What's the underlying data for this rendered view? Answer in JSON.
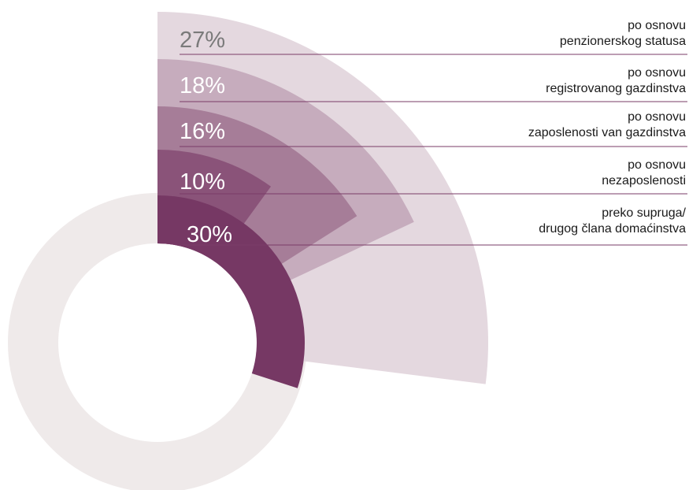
{
  "chart_data": {
    "type": "pie",
    "categories": [
      {
        "label_lines": [
          "po osnovu",
          "penzionerskog statusa"
        ],
        "value": 27,
        "value_label": "27%",
        "color": "#e4d8df"
      },
      {
        "label_lines": [
          "po osnovu",
          "registrovanog gazdinstva"
        ],
        "value": 18,
        "value_label": "18%",
        "color": "#c6acbd"
      },
      {
        "label_lines": [
          "po osnovu",
          "zaposlenosti van gazdinstva"
        ],
        "value": 16,
        "value_label": "16%",
        "color": "#a67d98"
      },
      {
        "label_lines": [
          "po osnovu",
          "nezaposlenosti"
        ],
        "value": 10,
        "value_label": "10%",
        "color": "#8a5379"
      },
      {
        "label_lines": [
          "preko supruga/",
          "drugog člana domaćinstva"
        ],
        "value": 30,
        "value_label": "30%",
        "color": "#763864"
      }
    ],
    "base_ring_color": "#efeaea",
    "leader_line_color": "#7a3b67",
    "value_label_color": "#7a7a7a",
    "value_label_color_inner": "#ffffff"
  }
}
